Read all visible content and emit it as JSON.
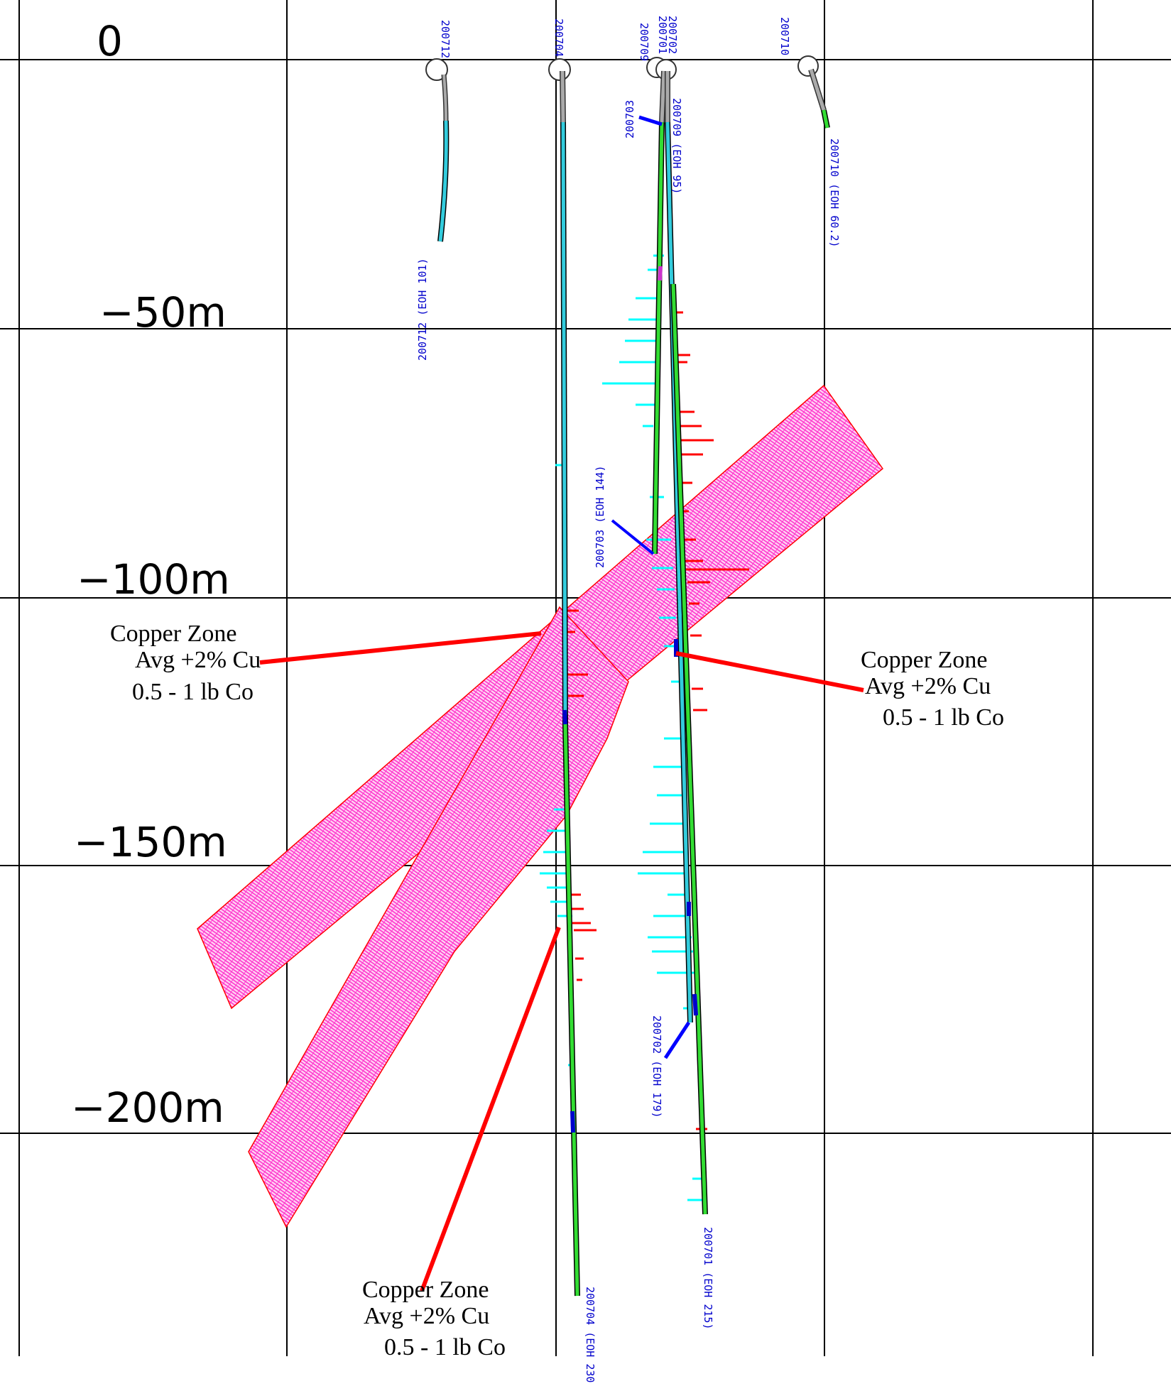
{
  "depth_labels": [
    "0",
    "−50m",
    "−100m",
    "−150m",
    "−200m"
  ],
  "hole_collar_labels": {
    "h200712": "200712",
    "h200704": "200704",
    "h200702": "200702",
    "h200701": "200701",
    "h200709": "200709",
    "h200710": "200710"
  },
  "hole_end_labels": {
    "h200712": "200712 (EOH 101)",
    "h200709": "200709 (EOH 95)",
    "h200710": "200710 (EOH 60.2)",
    "h200703_top": "200703",
    "h200703": "200703 (EOH 144)",
    "h200702": "200702 (EOH 179)",
    "h200701": "200701 (EOH 215)",
    "h200704": "200704 (EOH 230"
  },
  "zone_callouts": [
    {
      "line1": "Copper Zone",
      "line2": "Avg +2%  Cu",
      "line3": "0.5 - 1 lb Co"
    },
    {
      "line1": "Copper Zone",
      "line2": "Avg +2%  Cu",
      "line3": "0.5 - 1 lb Co"
    },
    {
      "line1": "Copper Zone",
      "line2": "Avg +2%  Cu",
      "line3": "0.5 - 1 lb Co"
    }
  ],
  "colors": {
    "grid": "#000000",
    "zone_fill": "#ff33cc",
    "zone_edge": "#ff0000",
    "hole_trace": "#33ccdd",
    "hole_mineralized": "#33dd33",
    "hole_collar": "#aaaaaa",
    "cu_histogram": "#ff0000",
    "co_histogram": "#00ffff",
    "labels": "#0000cc",
    "leader": "#ff0000"
  }
}
